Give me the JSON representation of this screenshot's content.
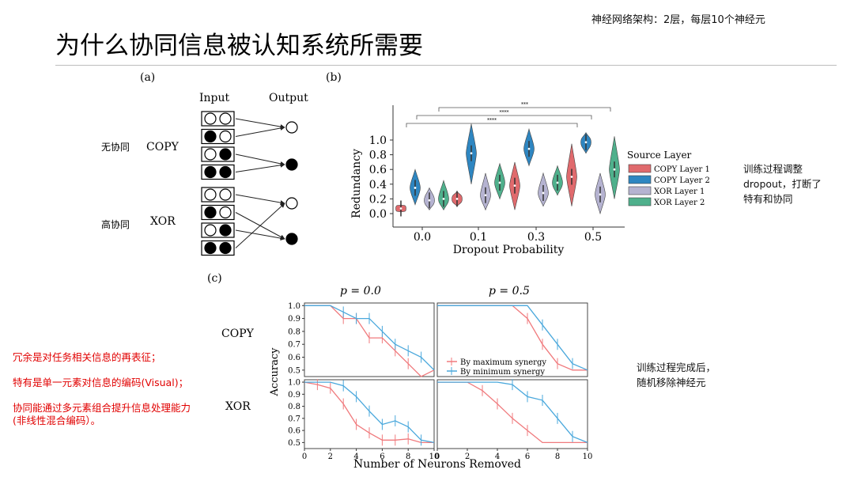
{
  "slide": {
    "title": "为什么协同信息被认知系统所需要",
    "top_note": "神经网络架构：2层，每层10个神经元",
    "right_note_1": [
      "训练过程调整",
      "dropout，打断了",
      "特有和协同"
    ],
    "right_note_2": [
      "训练过程完成后，",
      "随机移除神经元"
    ],
    "left_notes": [
      "冗余是对任务相关信息的再表征；",
      "特有是单一元素对信息的编码(Visual)；",
      "协同能通过多元素组合提升信息处理能力",
      "(非线性混合编码）。"
    ]
  },
  "panel_a": {
    "label": "(a)",
    "input_header": "Input",
    "output_header": "Output",
    "copy_cn": "无协同",
    "copy_label": "COPY",
    "xor_cn": "高协同",
    "xor_label": "XOR",
    "copy_inputs": [
      [
        0,
        0
      ],
      [
        1,
        0
      ],
      [
        0,
        1
      ],
      [
        1,
        1
      ]
    ],
    "xor_inputs": [
      [
        0,
        0
      ],
      [
        1,
        0
      ],
      [
        0,
        1
      ],
      [
        1,
        1
      ]
    ]
  },
  "chart_data": [
    {
      "type": "violin",
      "panel": "(b)",
      "xlabel": "Dropout Probability",
      "ylabel": "Redundancy",
      "categories": [
        "0.0",
        "0.1",
        "0.3",
        "0.5"
      ],
      "yticks": [
        "0.0",
        "0.2",
        "0.4",
        "0.6",
        "0.8",
        "1.0"
      ],
      "ylim": [
        -0.1,
        1.35
      ],
      "legend_title": "Source Layer",
      "legend_position": "right",
      "series": [
        {
          "name": "COPY Layer 1",
          "color": "#e06a6d",
          "medians": [
            0.07,
            0.2,
            0.38,
            0.5
          ]
        },
        {
          "name": "COPY Layer 2",
          "color": "#2e86c1",
          "medians": [
            0.35,
            0.82,
            0.88,
            0.97
          ]
        },
        {
          "name": "XOR Layer 1",
          "color": "#b5b3d1",
          "medians": [
            0.18,
            0.25,
            0.28,
            0.26
          ]
        },
        {
          "name": "XOR Layer 2",
          "color": "#4fb08c",
          "medians": [
            0.2,
            0.42,
            0.42,
            0.6
          ]
        }
      ],
      "significance": [
        "****",
        "****",
        "***"
      ]
    },
    {
      "type": "line",
      "panel": "(c)",
      "xlabel": "Number of Neurons Removed",
      "ylabel": "Accuracy",
      "xticks": [
        "0",
        "2",
        "4",
        "6",
        "8",
        "10"
      ],
      "yticks": [
        "0.5",
        "0.6",
        "0.7",
        "0.8",
        "0.9",
        "1.0"
      ],
      "xlim": [
        0,
        10
      ],
      "ylim": [
        0.45,
        1.02
      ],
      "column_titles": [
        "p = 0.0",
        "p = 0.5"
      ],
      "row_labels": [
        "COPY",
        "XOR"
      ],
      "legend": [
        "By maximum synergy",
        "By minimum synergy"
      ],
      "series_colors": [
        "#f07a7d",
        "#4aa8dc"
      ],
      "subplots": [
        {
          "row": "COPY",
          "p": "0.0",
          "x": [
            0,
            1,
            2,
            3,
            4,
            5,
            6,
            7,
            8,
            9,
            10
          ],
          "max_synergy": [
            1.0,
            1.0,
            1.0,
            0.9,
            0.9,
            0.75,
            0.75,
            0.65,
            0.55,
            0.45,
            0.5
          ],
          "min_synergy": [
            1.0,
            1.0,
            1.0,
            0.95,
            0.9,
            0.9,
            0.8,
            0.7,
            0.65,
            0.6,
            0.5
          ]
        },
        {
          "row": "COPY",
          "p": "0.5",
          "x": [
            0,
            1,
            2,
            3,
            4,
            5,
            6,
            7,
            8,
            9,
            10
          ],
          "max_synergy": [
            1.0,
            1.0,
            1.0,
            1.0,
            1.0,
            1.0,
            0.9,
            0.7,
            0.55,
            0.5,
            0.5
          ],
          "min_synergy": [
            1.0,
            1.0,
            1.0,
            1.0,
            1.0,
            1.0,
            1.0,
            0.85,
            0.7,
            0.55,
            0.5
          ]
        },
        {
          "row": "XOR",
          "p": "0.0",
          "x": [
            0,
            1,
            2,
            3,
            4,
            5,
            6,
            7,
            8,
            9,
            10
          ],
          "max_synergy": [
            1.0,
            0.98,
            0.95,
            0.82,
            0.65,
            0.58,
            0.52,
            0.52,
            0.53,
            0.5,
            0.5
          ],
          "min_synergy": [
            1.0,
            1.0,
            1.0,
            0.97,
            0.88,
            0.76,
            0.65,
            0.68,
            0.63,
            0.52,
            0.5
          ]
        },
        {
          "row": "XOR",
          "p": "0.5",
          "x": [
            0,
            1,
            2,
            3,
            4,
            5,
            6,
            7,
            8,
            9,
            10
          ],
          "max_synergy": [
            1.0,
            1.0,
            1.0,
            0.93,
            0.82,
            0.7,
            0.6,
            0.5,
            0.5,
            0.5,
            0.5
          ],
          "min_synergy": [
            1.0,
            1.0,
            1.0,
            1.0,
            1.0,
            0.98,
            0.88,
            0.85,
            0.7,
            0.55,
            0.5
          ]
        }
      ]
    }
  ]
}
